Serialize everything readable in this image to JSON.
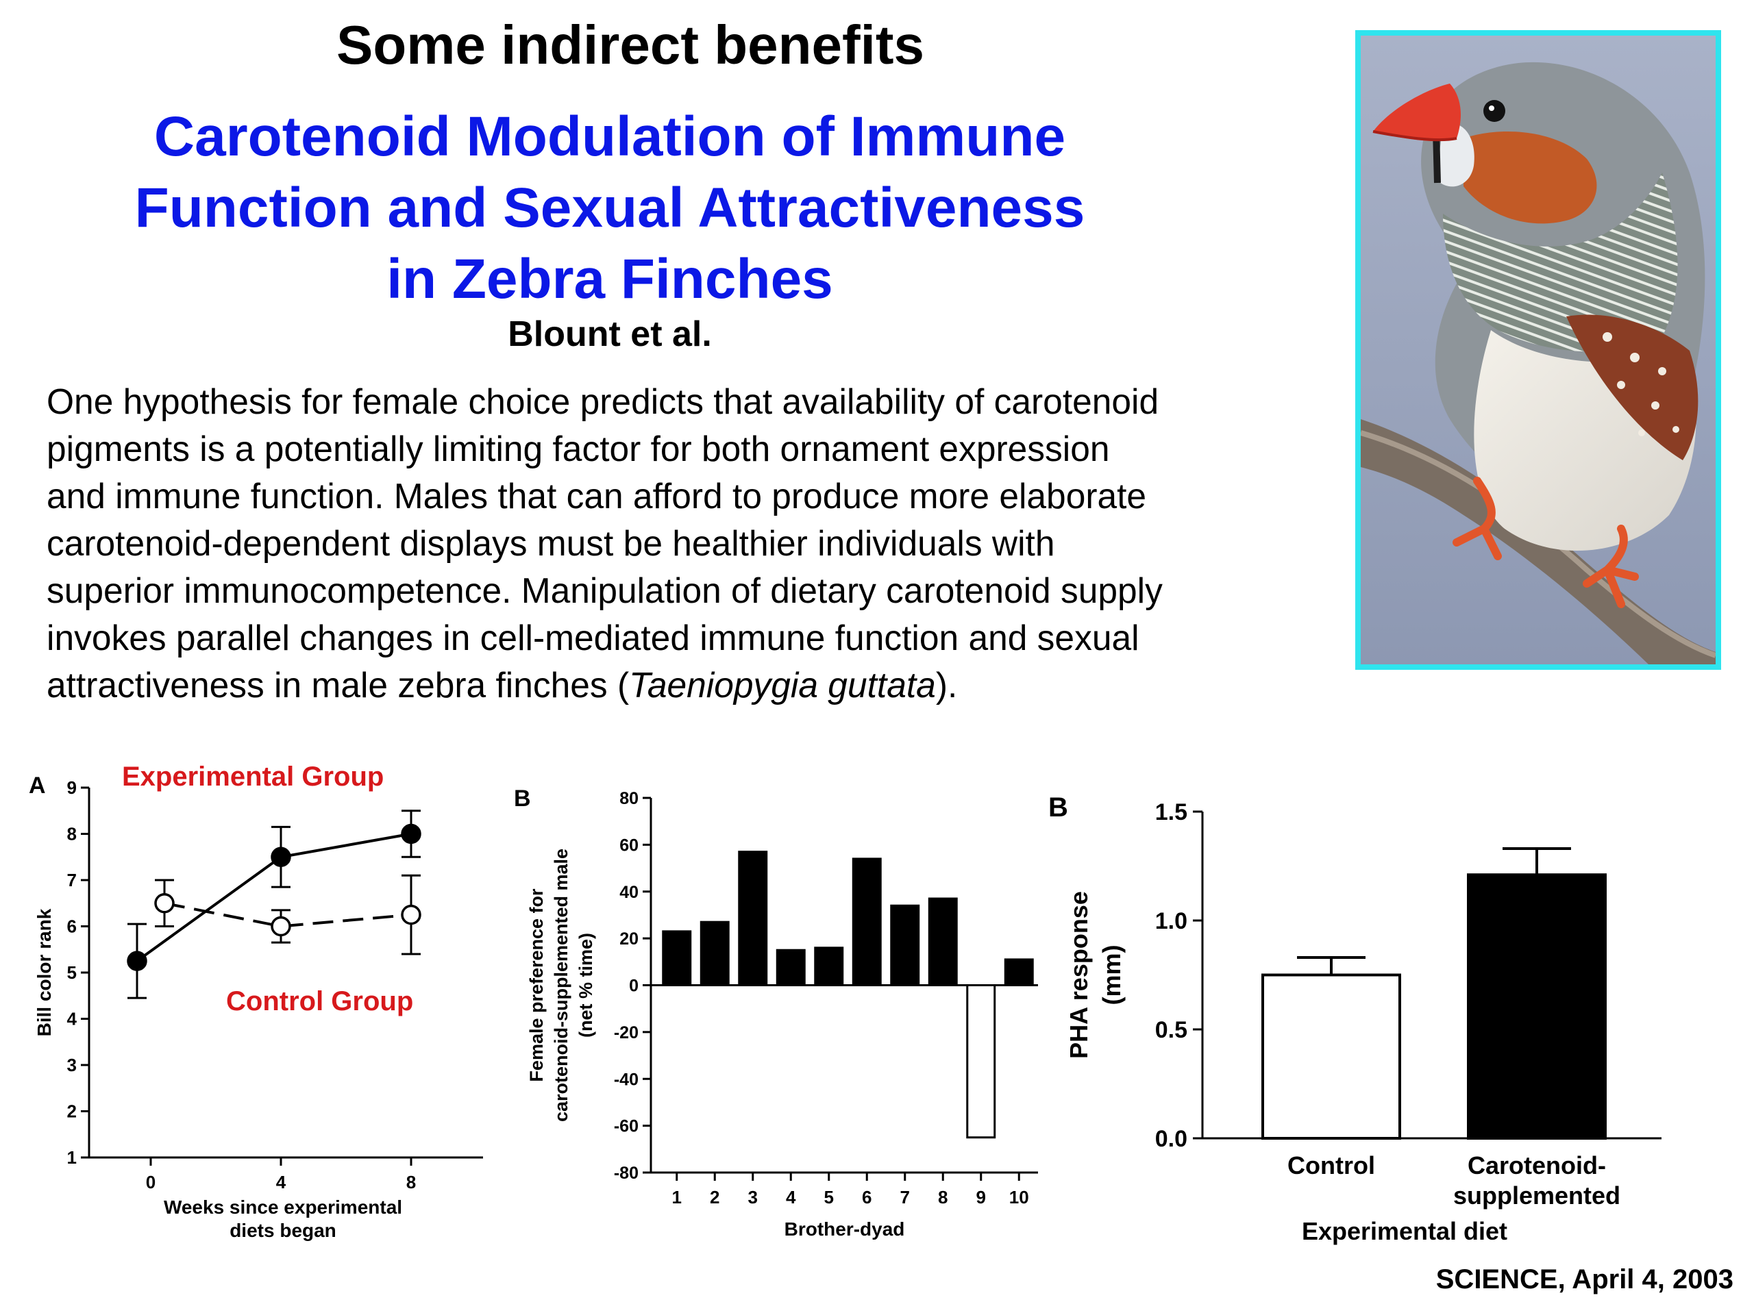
{
  "slide": {
    "heading": "Some indirect benefits",
    "paper_title": [
      "Carotenoid Modulation of Immune",
      "Function and Sexual Attractiveness",
      "in Zebra Finches"
    ],
    "authors": "Blount et al.",
    "abstract_lines": [
      "One hypothesis for female choice predicts that availability of carotenoid",
      "pigments is a potentially limiting factor for both ornament expression",
      "and immune function. Males that can afford to produce more elaborate",
      "carotenoid-dependent displays must be healthier individuals with",
      "superior immunocompetence. Manipulation of dietary carotenoid supply",
      "invokes parallel changes in cell-mediated immune function and sexual"
    ],
    "abstract_last_prefix": "attractiveness in male zebra finches (",
    "abstract_species": "Taeniopygia guttata",
    "abstract_last_suffix": ").",
    "citation": "SCIENCE, April 4, 2003",
    "title_color": "#0b18e6",
    "photo_border_color": "#2fe4ee"
  },
  "chart_data": [
    {
      "type": "line",
      "panel_label": "A",
      "ylabel": "Bill color rank",
      "xlabel_lines": [
        "Weeks since experimental",
        "diets began"
      ],
      "ylim": [
        1,
        9
      ],
      "yticks": [
        1,
        2,
        3,
        4,
        5,
        6,
        7,
        8,
        9
      ],
      "xticks": [
        0,
        4,
        8
      ],
      "annotations": [
        {
          "text": "Experimental Group",
          "color": "#d7191c"
        },
        {
          "text": "Control Group",
          "color": "#d7191c"
        }
      ],
      "series": [
        {
          "marker": "filled",
          "line": "solid",
          "x": [
            0,
            4,
            8
          ],
          "y": [
            5.25,
            7.5,
            8.0
          ],
          "err": [
            0.8,
            0.65,
            0.5
          ]
        },
        {
          "marker": "open",
          "line": "dashed",
          "x": [
            0,
            4,
            8
          ],
          "y": [
            6.5,
            6.0,
            6.25
          ],
          "err": [
            0.5,
            0.35,
            0.85
          ]
        }
      ]
    },
    {
      "type": "bar",
      "panel_label": "B",
      "ylabel_lines": [
        "Female preference for",
        "carotenoid-supplemented male",
        "(net % time)"
      ],
      "xlabel": "Brother-dyad",
      "ylim": [
        -80,
        80
      ],
      "yticks": [
        80,
        60,
        40,
        20,
        0,
        -20,
        -40,
        -60,
        -80
      ],
      "categories": [
        "1",
        "2",
        "3",
        "4",
        "5",
        "6",
        "7",
        "8",
        "9",
        "10"
      ],
      "values": [
        23,
        27,
        57,
        15,
        16,
        54,
        34,
        37,
        -65,
        11
      ]
    },
    {
      "type": "bar",
      "panel_label": "B",
      "ylabel_lines": [
        "PHA response",
        "(mm)"
      ],
      "xlabel": "Experimental diet",
      "ylim": [
        0,
        1.5
      ],
      "yticks": [
        "0.0",
        "0.5",
        "1.0",
        "1.5"
      ],
      "ytick_values": [
        0,
        0.5,
        1.0,
        1.5
      ],
      "categories": [
        [
          "Control"
        ],
        [
          "Carotenoid-",
          "supplemented"
        ]
      ],
      "values": [
        0.75,
        1.21
      ],
      "err": [
        0.08,
        0.12
      ],
      "fills": [
        "#ffffff",
        "#000000"
      ]
    }
  ]
}
